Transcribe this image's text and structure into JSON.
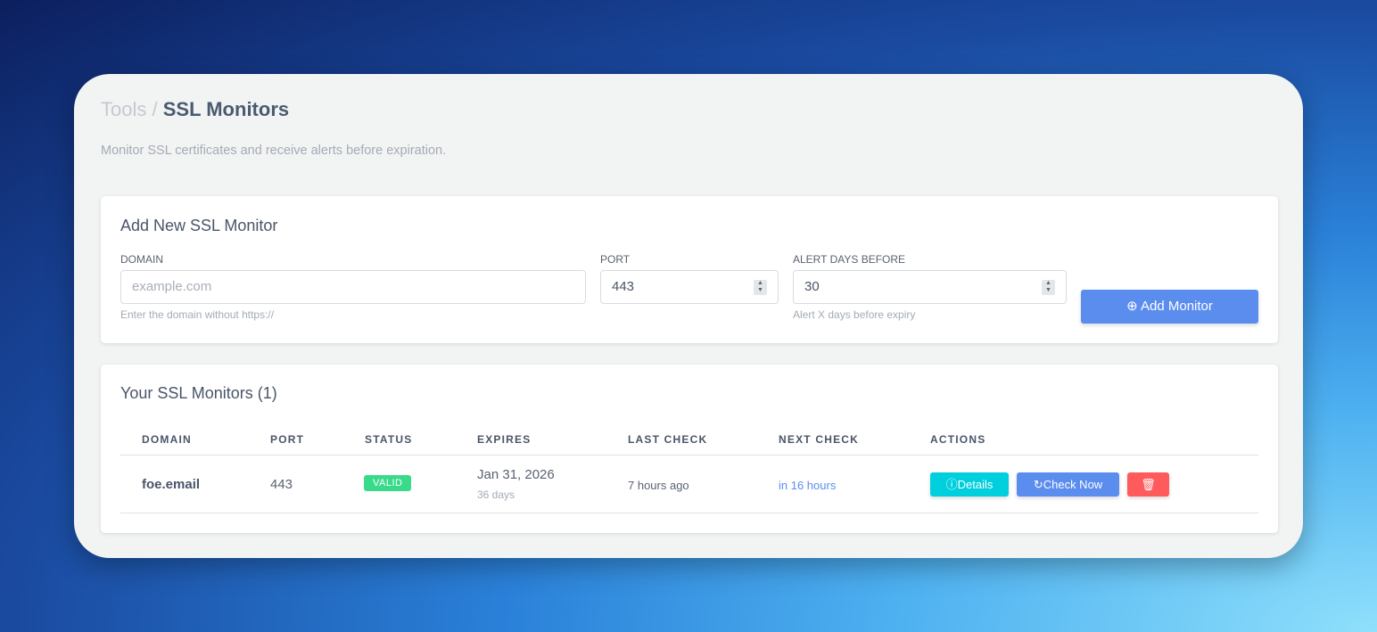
{
  "breadcrumb": {
    "parent": "Tools",
    "separator": "/",
    "current": "SSL Monitors"
  },
  "subtitle": "Monitor SSL certificates and receive alerts before expiration.",
  "add_form": {
    "title": "Add New SSL Monitor",
    "domain": {
      "label": "DOMAIN",
      "placeholder": "example.com",
      "hint": "Enter the domain without https://"
    },
    "port": {
      "label": "PORT",
      "value": "443"
    },
    "alert": {
      "label": "ALERT DAYS BEFORE",
      "value": "30",
      "hint": "Alert X days before expiry"
    },
    "submit": "Add Monitor"
  },
  "monitors": {
    "title": "Your SSL Monitors (1)",
    "columns": [
      "DOMAIN",
      "PORT",
      "STATUS",
      "EXPIRES",
      "LAST CHECK",
      "NEXT CHECK",
      "ACTIONS"
    ],
    "rows": [
      {
        "domain": "foe.email",
        "port": "443",
        "status": "VALID",
        "expires": "Jan 31, 2026",
        "expires_in": "36 days",
        "last_check": "7 hours ago",
        "next_check": "in 16 hours",
        "details": "Details",
        "check_now": "Check Now"
      }
    ]
  },
  "colors": {
    "primary": "#5b8def",
    "info": "#00cfdd",
    "danger": "#ff5b5c",
    "success": "#39da8a"
  }
}
